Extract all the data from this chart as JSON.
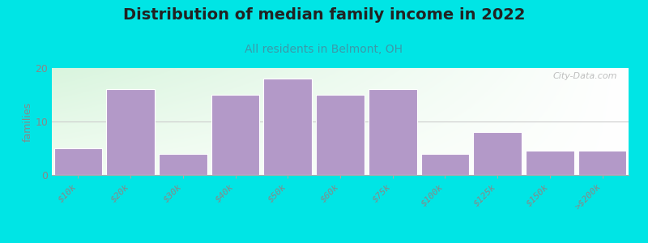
{
  "title": "Distribution of median family income in 2022",
  "subtitle": "All residents in Belmont, OH",
  "categories": [
    "$10k",
    "$20k",
    "$30k",
    "$40k",
    "$50k",
    "$60k",
    "$75k",
    "$100k",
    "$125k",
    "$150k",
    ">$200k"
  ],
  "values": [
    5,
    16,
    4,
    15,
    18,
    15,
    16,
    4,
    8,
    4.5,
    4.5
  ],
  "bar_color": "#b399c8",
  "bar_edge_color": "#ffffff",
  "background_outer": "#00e5e5",
  "ylabel": "families",
  "ylim": [
    0,
    20
  ],
  "yticks": [
    0,
    10,
    20
  ],
  "title_fontsize": 14,
  "subtitle_fontsize": 10,
  "subtitle_color": "#3a9aaa",
  "watermark": "City-Data.com",
  "grid_color": "#dddddd",
  "tick_label_color": "#888888"
}
